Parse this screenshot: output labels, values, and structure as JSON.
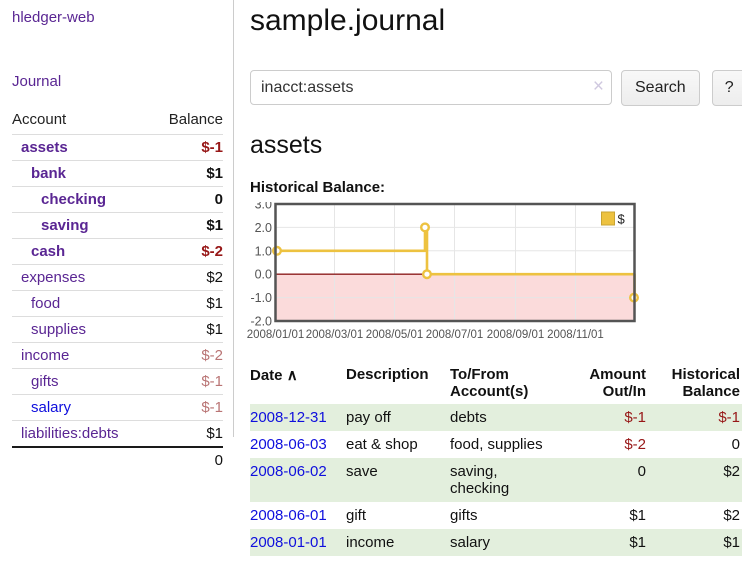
{
  "colors": {
    "accent_purple": "#5a2693",
    "link_blue": "#0f0fdd",
    "negative": "#971717",
    "negative_muted": "#b97474",
    "row_shade_green": "#e3efdd",
    "series_gold": "#edc240"
  },
  "sidebar": {
    "app_title": "hledger-web",
    "journal_link": "Journal",
    "header": {
      "account": "Account",
      "balance": "Balance"
    },
    "accounts": [
      {
        "name": "assets",
        "balance": "$-1",
        "row_class": "lvl1 matched",
        "balance_class": "neg"
      },
      {
        "name": "bank",
        "balance": "$1",
        "row_class": "lvl2 matched",
        "balance_class": ""
      },
      {
        "name": "checking",
        "balance": "0",
        "row_class": "lvl3 matched",
        "balance_class": ""
      },
      {
        "name": "saving",
        "balance": "$1",
        "row_class": "lvl3 matched",
        "balance_class": ""
      },
      {
        "name": "cash",
        "balance": "$-2",
        "row_class": "lvl2 matched",
        "balance_class": "neg"
      },
      {
        "name": "expenses",
        "balance": "$2",
        "row_class": "lvl1",
        "balance_class": ""
      },
      {
        "name": "food",
        "balance": "$1",
        "row_class": "lvl2",
        "balance_class": ""
      },
      {
        "name": "supplies",
        "balance": "$1",
        "row_class": "lvl2",
        "balance_class": ""
      },
      {
        "name": "income",
        "balance": "$-2",
        "row_class": "lvl1",
        "balance_class": "neg-muted"
      },
      {
        "name": "gifts",
        "balance": "$-1",
        "row_class": "lvl2",
        "balance_class": "neg-muted"
      },
      {
        "name": "salary",
        "balance": "$-1",
        "row_class": "lvl2",
        "balance_class": "neg-muted",
        "link_class": "unvisited"
      },
      {
        "name": "liabilities:debts",
        "balance": "$1",
        "row_class": "lvl1",
        "balance_class": ""
      }
    ],
    "total": "0"
  },
  "main": {
    "title": "sample.journal",
    "account_heading": "assets"
  },
  "search": {
    "value": "inacct:assets",
    "clear_label": "×",
    "button_label": "Search",
    "help_label": "?"
  },
  "chart_data": {
    "type": "line",
    "step": true,
    "title": "Historical Balance:",
    "series": [
      {
        "name": "$",
        "color": "#edc240",
        "points": [
          [
            "2008-01-01",
            1
          ],
          [
            "2008-06-01",
            2
          ],
          [
            "2008-06-03",
            0
          ],
          [
            "2008-12-31",
            -1
          ]
        ]
      }
    ],
    "x_range": [
      "2008-01-01",
      "2008-12-31"
    ],
    "ylim": [
      -2,
      3
    ],
    "y_ticks": [
      "3.0",
      "2.0",
      "1.0",
      "0.0",
      "-1.0",
      "-2.0"
    ],
    "y_tick_values": [
      3,
      2,
      1,
      0,
      -1,
      -2
    ],
    "x_ticks": [
      "2008/01/01",
      "2008/03/01",
      "2008/05/01",
      "2008/07/01",
      "2008/09/01",
      "2008/11/01"
    ],
    "legend_position": "top-right",
    "grid": true,
    "grid_color": "#e6e6e6",
    "border_color": "#545454",
    "zero_line_color": "#8c1e1e",
    "negative_fill": "#fbdbdb"
  },
  "register": {
    "header": {
      "date": "Date",
      "sort_indicator": "∧",
      "description": "Description",
      "accounts": "To/From Account(s)",
      "amount": "Amount Out/In",
      "balance": "Historical Balance"
    },
    "rows": [
      {
        "date": "2008-12-31",
        "description": "pay off",
        "accounts": "debts",
        "amount": "$-1",
        "amount_class": "neg",
        "balance": "$-1",
        "balance_class": "neg",
        "row_class": "shade"
      },
      {
        "date": "2008-06-03",
        "description": "eat & shop",
        "accounts": "food, supplies",
        "amount": "$-2",
        "amount_class": "neg",
        "balance": "0",
        "balance_class": "",
        "row_class": ""
      },
      {
        "date": "2008-06-02",
        "description": "save",
        "accounts": "saving, checking",
        "amount": "0",
        "amount_class": "",
        "balance": "$2",
        "balance_class": "",
        "row_class": "shade"
      },
      {
        "date": "2008-06-01",
        "description": "gift",
        "accounts": "gifts",
        "amount": "$1",
        "amount_class": "",
        "balance": "$2",
        "balance_class": "",
        "row_class": ""
      },
      {
        "date": "2008-01-01",
        "description": "income",
        "accounts": "salary",
        "amount": "$1",
        "amount_class": "",
        "balance": "$1",
        "balance_class": "",
        "row_class": "shade"
      }
    ]
  }
}
